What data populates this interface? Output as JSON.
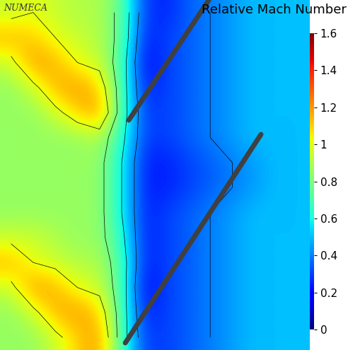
{
  "chart_data": {
    "type": "contour",
    "title": "Relative Mach Number",
    "logo": "NUMECA",
    "tick_labels": false,
    "cells": [
      [
        0.95,
        1.0,
        0.95,
        0.9,
        0.9,
        0.75,
        0.3,
        0.25,
        0.35,
        0.4,
        0.45,
        0.5,
        0.5,
        0.5
      ],
      [
        1.15,
        1.1,
        1.0,
        0.95,
        0.9,
        0.75,
        0.25,
        0.3,
        0.35,
        0.4,
        0.45,
        0.5,
        0.5,
        0.5
      ],
      [
        0.95,
        1.2,
        1.15,
        1.0,
        0.95,
        0.7,
        0.2,
        0.3,
        0.35,
        0.4,
        0.45,
        0.5,
        0.5,
        0.5
      ],
      [
        0.85,
        0.95,
        1.15,
        1.2,
        1.1,
        0.7,
        0.25,
        0.3,
        0.35,
        0.4,
        0.45,
        0.5,
        0.5,
        0.5
      ],
      [
        0.85,
        0.85,
        0.95,
        1.1,
        1.2,
        0.7,
        0.3,
        0.3,
        0.35,
        0.4,
        0.45,
        0.5,
        0.5,
        0.5
      ],
      [
        0.85,
        0.85,
        0.85,
        0.85,
        0.9,
        0.65,
        0.3,
        0.3,
        0.35,
        0.4,
        0.45,
        0.5,
        0.5,
        0.5
      ],
      [
        0.85,
        0.85,
        0.85,
        0.85,
        0.85,
        0.6,
        0.25,
        0.25,
        0.3,
        0.35,
        0.4,
        0.45,
        0.5,
        0.5
      ],
      [
        0.85,
        0.85,
        0.85,
        0.85,
        0.85,
        0.6,
        0.25,
        0.25,
        0.3,
        0.35,
        0.4,
        0.45,
        0.5,
        0.5
      ],
      [
        0.85,
        0.85,
        0.85,
        0.85,
        0.85,
        0.6,
        0.25,
        0.3,
        0.35,
        0.4,
        0.45,
        0.5,
        0.5,
        0.5
      ],
      [
        0.95,
        0.95,
        0.9,
        0.85,
        0.85,
        0.65,
        0.25,
        0.3,
        0.35,
        0.4,
        0.45,
        0.5,
        0.5,
        0.5
      ],
      [
        1.15,
        1.0,
        0.95,
        0.9,
        0.9,
        0.7,
        0.25,
        0.3,
        0.35,
        0.4,
        0.45,
        0.5,
        0.5,
        0.5
      ],
      [
        0.95,
        1.2,
        1.15,
        1.0,
        0.95,
        0.7,
        0.2,
        0.3,
        0.35,
        0.4,
        0.45,
        0.5,
        0.5,
        0.5
      ],
      [
        0.85,
        0.95,
        1.15,
        1.2,
        1.1,
        0.7,
        0.25,
        0.3,
        0.35,
        0.4,
        0.45,
        0.5,
        0.5,
        0.5
      ],
      [
        0.85,
        0.85,
        0.95,
        1.1,
        1.2,
        0.7,
        0.3,
        0.3,
        0.35,
        0.4,
        0.45,
        0.5,
        0.5,
        0.5
      ]
    ],
    "colorbar": {
      "range": [
        0,
        1.6
      ],
      "ticks": [
        0,
        0.2,
        0.4,
        0.6,
        0.8,
        1,
        1.2,
        1.4,
        1.6
      ]
    }
  }
}
